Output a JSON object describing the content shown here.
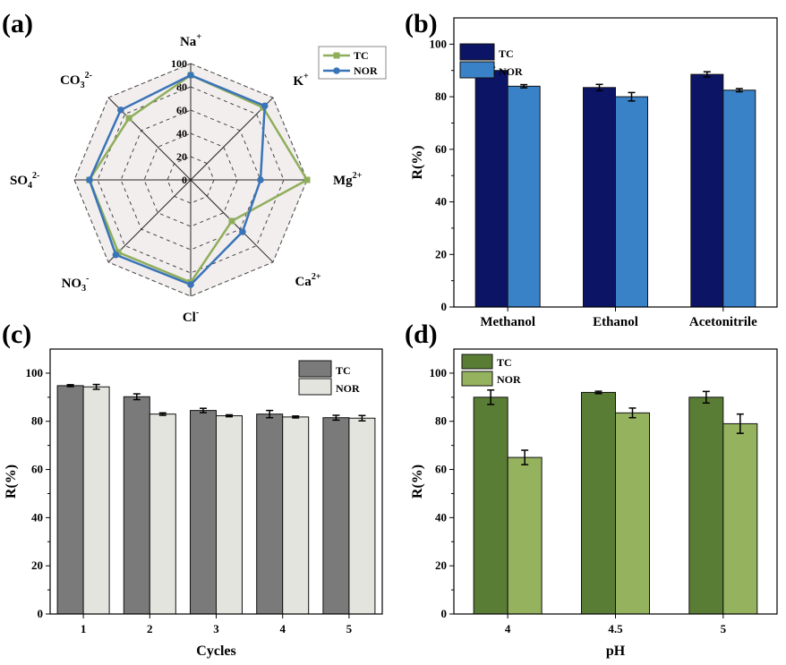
{
  "panels": [
    {
      "label": "(a)",
      "chart_data": {
        "type": "radar",
        "axes": [
          "Na+",
          "K+",
          "Mg2+",
          "Ca2+",
          "Cl-",
          "NO3-",
          "SO42-",
          "CO32-"
        ],
        "axis_labels": [
          {
            "base": "Na",
            "sup": "+"
          },
          {
            "base": "K",
            "sup": "+"
          },
          {
            "base": "Mg",
            "sup": "2+"
          },
          {
            "base": "Ca",
            "sup": "2+"
          },
          {
            "base": "Cl",
            "sup": "-"
          },
          {
            "base": "NO",
            "sub": "3",
            "sup": "-"
          },
          {
            "base": "SO",
            "sub": "4",
            "sup": "2-"
          },
          {
            "base": "CO",
            "sub": "3",
            "sup": "2-"
          }
        ],
        "rmax": 100,
        "ticks": [
          0,
          20,
          40,
          60,
          80,
          100
        ],
        "series": [
          {
            "name": "TC",
            "color": "#8fae5c",
            "values": [
              90,
              88,
              100,
              50,
              88,
              88,
              87,
              75
            ]
          },
          {
            "name": "NOR",
            "color": "#3a74b8",
            "values": [
              90,
              90,
              60,
              63,
              90,
              91,
              87,
              85
            ]
          }
        ],
        "legend_position": "top-right"
      }
    },
    {
      "label": "(b)",
      "chart_data": {
        "type": "bar",
        "categories": [
          "Methanol",
          "Ethanol",
          "Acetonitrile"
        ],
        "series": [
          {
            "name": "TC",
            "color": "#0c1466",
            "values": [
              90,
              83.5,
              88.5
            ],
            "errors": [
              1.2,
              1.2,
              1.0
            ]
          },
          {
            "name": "NOR",
            "color": "#3a82c8",
            "values": [
              84,
              80,
              82.5
            ],
            "errors": [
              0.6,
              1.6,
              0.6
            ]
          }
        ],
        "xlabel": "",
        "ylabel": "R(%)",
        "ylim": [
          0,
          110
        ],
        "yticks": [
          0,
          20,
          40,
          60,
          80,
          100
        ],
        "legend_position": "top-left"
      }
    },
    {
      "label": "(c)",
      "chart_data": {
        "type": "bar",
        "categories": [
          "1",
          "2",
          "3",
          "4",
          "5"
        ],
        "series": [
          {
            "name": "TC",
            "color": "#7a7a7a",
            "values": [
              94.8,
              90.2,
              84.5,
              83,
              81.5
            ],
            "errors": [
              0.4,
              1.2,
              0.9,
              1.5,
              1.0
            ]
          },
          {
            "name": "NOR",
            "color": "#e4e4df",
            "values": [
              94.3,
              83,
              82.3,
              81.8,
              81.3
            ],
            "errors": [
              1.0,
              0.5,
              0.4,
              0.4,
              1.1
            ]
          }
        ],
        "xlabel": "Cycles",
        "ylabel": "R(%)",
        "ylim": [
          0,
          110
        ],
        "yticks": [
          0,
          20,
          40,
          60,
          80,
          100
        ],
        "legend_position": "top-right"
      }
    },
    {
      "label": "(d)",
      "chart_data": {
        "type": "bar",
        "categories": [
          "4",
          "4.5",
          "5"
        ],
        "series": [
          {
            "name": "TC",
            "color": "#5a7d35",
            "values": [
              90,
              92,
              90
            ],
            "errors": [
              3.0,
              0.5,
              2.4
            ]
          },
          {
            "name": "NOR",
            "color": "#95b35e",
            "values": [
              65,
              83.5,
              79
            ],
            "errors": [
              3.0,
              2.0,
              4.0
            ]
          }
        ],
        "xlabel": "pH",
        "ylabel": "R(%)",
        "ylim": [
          0,
          110
        ],
        "yticks": [
          0,
          20,
          40,
          60,
          80,
          100
        ],
        "legend_position": "top-left"
      }
    }
  ]
}
